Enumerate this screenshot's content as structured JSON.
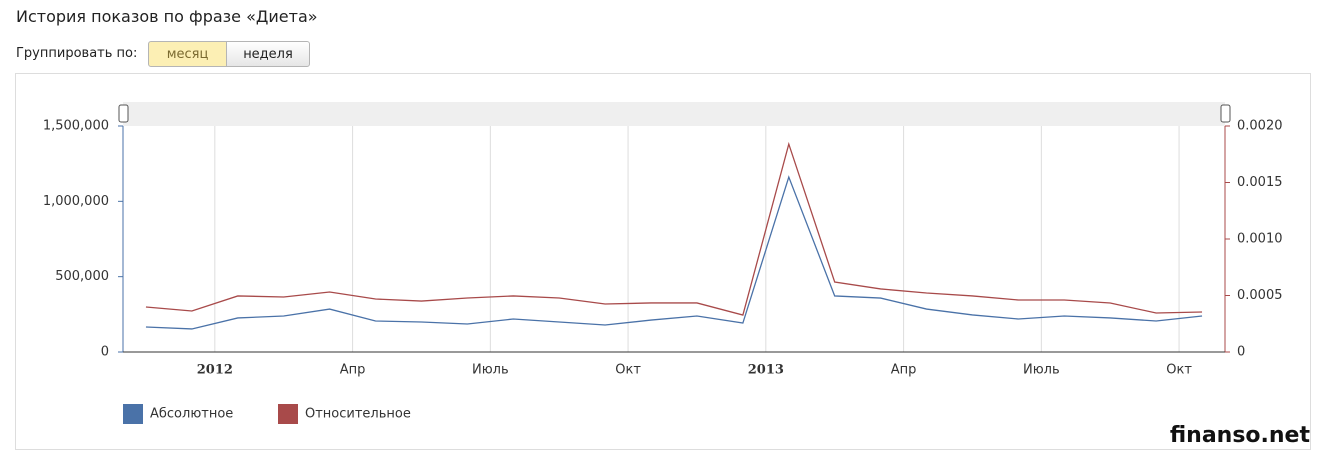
{
  "header": {
    "title": "История показов по фразе «Диета»",
    "group_label": "Группировать по:",
    "buttons": [
      "месяц",
      "неделя"
    ]
  },
  "watermark": "finanso.net",
  "chart_data": {
    "type": "line",
    "x": [
      "2011-11",
      "2011-12",
      "2012-01",
      "2012-02",
      "2012-03",
      "2012-04",
      "2012-05",
      "2012-06",
      "2012-07",
      "2012-08",
      "2012-09",
      "2012-10",
      "2012-11",
      "2012-12",
      "2013-01",
      "2013-02",
      "2013-03",
      "2013-04",
      "2013-05",
      "2013-06",
      "2013-07",
      "2013-08",
      "2013-09",
      "2013-10"
    ],
    "xlim": [
      "2011-11",
      "2013-11"
    ],
    "xticks": [
      {
        "value": "2012-01",
        "label": "2012"
      },
      {
        "value": "2012-04",
        "label": "Апр"
      },
      {
        "value": "2012-07",
        "label": "Июль"
      },
      {
        "value": "2012-10",
        "label": "Окт"
      },
      {
        "value": "2013-01",
        "label": "2013"
      },
      {
        "value": "2013-04",
        "label": "Апр"
      },
      {
        "value": "2013-07",
        "label": "Июль"
      },
      {
        "value": "2013-10",
        "label": "Окт"
      }
    ],
    "ylim": [
      0,
      1500000
    ],
    "yticks": [
      0,
      {
        "value": 500000,
        "label": "500,000"
      },
      {
        "value": 1000000,
        "label": "1,000,000"
      },
      {
        "value": 1500000,
        "label": "1,500,000"
      }
    ],
    "y2lim": [
      0,
      0.002
    ],
    "y2ticks": [
      0,
      0.0005,
      {
        "value": 0.001,
        "label": "0.0010"
      },
      0.0015,
      {
        "value": 0.002,
        "label": "0.0020"
      }
    ],
    "grid": true,
    "legend": "bottom-left",
    "series": [
      {
        "name": "Абсолютное",
        "color": "#4a72a8",
        "values": [
          166000,
          153000,
          226000,
          239000,
          285000,
          206000,
          199000,
          186000,
          219000,
          199000,
          179000,
          212000,
          239000,
          192000,
          1161000,
          372000,
          358000,
          285000,
          246000,
          219000,
          239000,
          226000,
          206000,
          239000
        ]
      },
      {
        "name": "Относительное",
        "color": "#a84a4a",
        "axis": "y2",
        "values": [
          0.000398,
          0.000363,
          0.000496,
          0.000487,
          0.000531,
          0.000469,
          0.000451,
          0.000478,
          0.000496,
          0.000478,
          0.000425,
          0.000434,
          0.000434,
          0.000327,
          0.00184,
          0.000619,
          0.000558,
          0.000522,
          0.000496,
          0.00046,
          0.00046,
          0.000434,
          0.000345,
          0.000354
        ]
      }
    ]
  }
}
